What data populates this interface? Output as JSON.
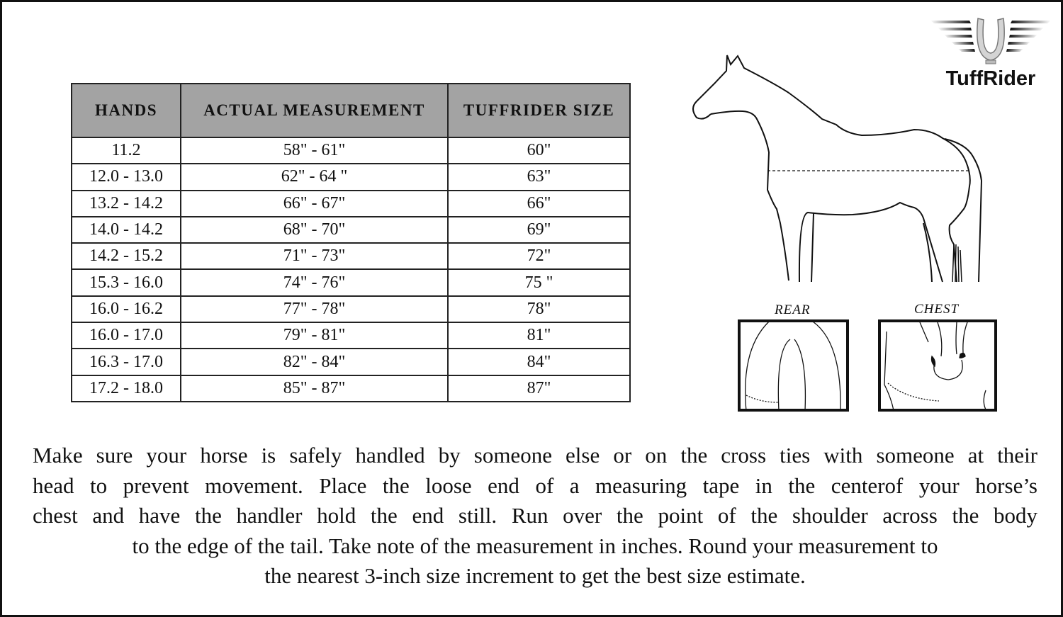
{
  "brand": {
    "name": "TuffRider",
    "logo_icon": "winged-horseshoe-icon"
  },
  "table": {
    "headers": [
      "HANDS",
      "ACTUAL MEASUREMENT",
      "TUFFRIDER SIZE"
    ],
    "header_color": "#a3a3a3",
    "rows": [
      [
        "11.2",
        "58\" - 61\"",
        "60\""
      ],
      [
        "12.0 - 13.0",
        "62\" - 64 \"",
        "63\""
      ],
      [
        "13.2 - 14.2",
        "66\" - 67\"",
        "66\""
      ],
      [
        "14.0 - 14.2",
        "68\" - 70\"",
        "69\""
      ],
      [
        "14.2 - 15.2",
        "71\" - 73\"",
        "72\""
      ],
      [
        "15.3 - 16.0",
        "74\" - 76\"",
        "75 \""
      ],
      [
        "16.0 - 16.2",
        "77\" - 78\"",
        "78\""
      ],
      [
        "16.0 - 17.0",
        "79\" - 81\"",
        "81\""
      ],
      [
        "16.3 - 17.0",
        "82\" - 84\"",
        "84\""
      ],
      [
        "17.2 - 18.0",
        "85\" - 87\"",
        "87\""
      ]
    ]
  },
  "diagrams": {
    "rear_label": "REAR",
    "chest_label": "CHEST"
  },
  "instructions": {
    "lines": [
      "Make sure your horse is safely handled by someone else or on the cross ties with someone at their",
      "head to prevent movement. Place the loose end of a measuring tape in the centerof your horse’s",
      "chest and have the handler hold the end still. Run over the point of the shoulder across the body",
      "to the edge of the tail. Take note of the measurement in inches. Round your measurement to",
      "the nearest 3-inch size increment to get the best size estimate."
    ]
  }
}
